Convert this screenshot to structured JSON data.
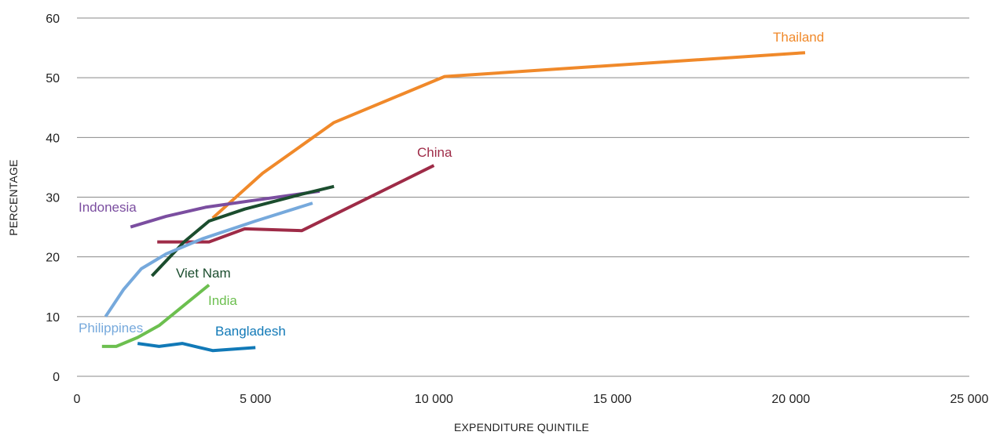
{
  "chart_data": {
    "type": "line",
    "xlabel": "EXPENDITURE QUINTILE",
    "ylabel": "PERCENTAGE",
    "xlim": [
      0,
      25000
    ],
    "ylim": [
      0,
      60
    ],
    "x_ticks": [
      0,
      5000,
      10000,
      15000,
      20000,
      25000
    ],
    "x_tick_labels": [
      "0",
      "5 000",
      "10 000",
      "15 000",
      "20 000",
      "25 000"
    ],
    "y_ticks": [
      0,
      10,
      20,
      30,
      40,
      50,
      60
    ],
    "y_tick_labels": [
      "0",
      "10",
      "20",
      "30",
      "40",
      "50",
      "60"
    ],
    "grid": "horizontal",
    "legend": "none",
    "series": [
      {
        "name": "Thailand",
        "color": "#f0892a",
        "x": [
          3800,
          5200,
          7200,
          10300,
          20400
        ],
        "y": [
          26.5,
          34,
          42.5,
          50.2,
          54.2
        ]
      },
      {
        "name": "China",
        "color": "#9e2b47",
        "x": [
          2250,
          3700,
          4700,
          6300,
          10000
        ],
        "y": [
          22.5,
          22.5,
          24.7,
          24.4,
          35.3
        ]
      },
      {
        "name": "Indonesia",
        "color": "#7b4ea0",
        "x": [
          1500,
          2500,
          3600,
          5000,
          6800
        ],
        "y": [
          25,
          26.8,
          28.3,
          29.5,
          31
        ]
      },
      {
        "name": "Viet Nam",
        "color": "#1b4d2e",
        "x": [
          2100,
          3000,
          3700,
          4700,
          6300,
          7200
        ],
        "y": [
          16.8,
          22.5,
          26,
          28,
          30.5,
          31.8
        ]
      },
      {
        "name": "Philippines",
        "color": "#76a9dc",
        "x": [
          800,
          1300,
          1800,
          2500,
          3500,
          5000,
          6600
        ],
        "y": [
          10,
          14.5,
          18,
          20.5,
          23,
          26,
          29
        ]
      },
      {
        "name": "India",
        "color": "#6cbf4f",
        "x": [
          700,
          1100,
          1700,
          2300,
          3700
        ],
        "y": [
          5,
          5,
          6.5,
          8.5,
          15.3
        ]
      },
      {
        "name": "Bangladesh",
        "color": "#1179b7",
        "x": [
          1700,
          2300,
          2950,
          3800,
          5000
        ],
        "y": [
          5.5,
          5,
          5.5,
          4.3,
          4.8
        ]
      }
    ]
  }
}
